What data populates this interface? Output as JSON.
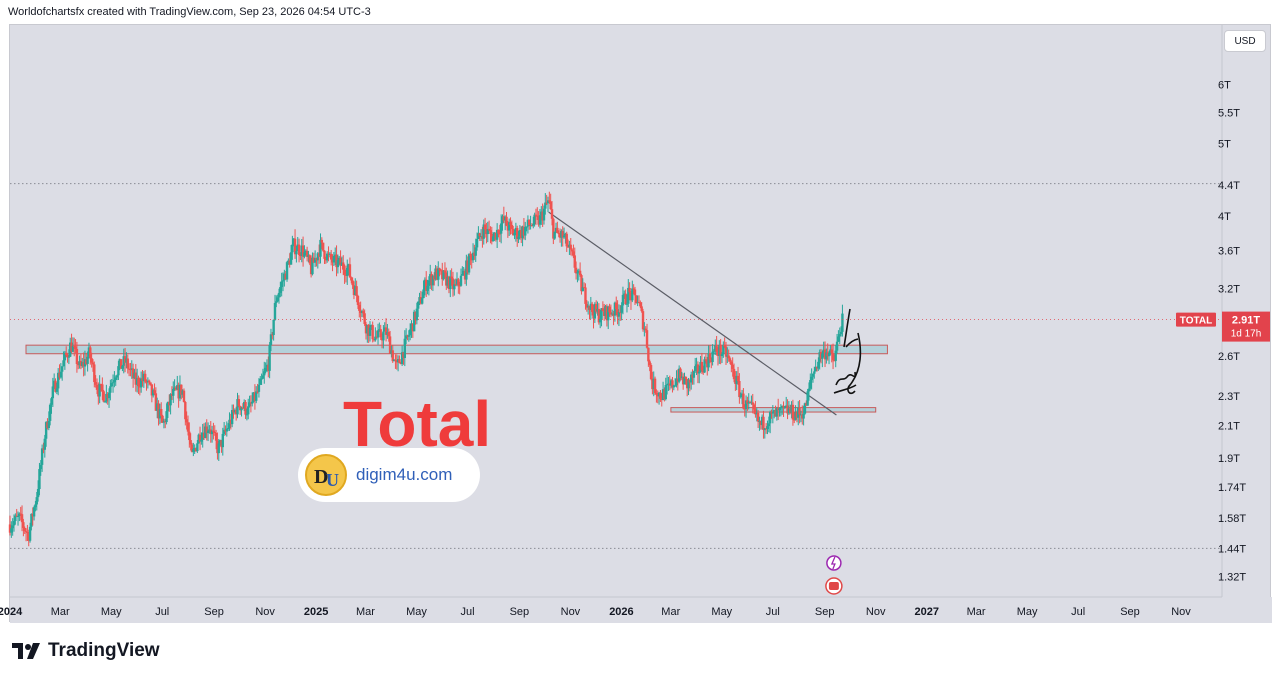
{
  "header": {
    "credit": "Worldofchartsfx created with TradingView.com, Sep 23, 2026 04:54 UTC-3"
  },
  "brand": {
    "name": "TradingView",
    "icon": "tradingview-logo-icon"
  },
  "toolbar": {
    "currency": "USD"
  },
  "overlay": {
    "title": "Total"
  },
  "watermark": {
    "text": "digim4u.com",
    "logo_text": "DU"
  },
  "colors": {
    "up": "#26a69a",
    "down": "#ef5350",
    "background": "#dcdde5",
    "label": "#e2434c",
    "zone_fill": "#a7ccd6"
  },
  "chart_data": {
    "type": "candlestick",
    "symbol": "TOTAL",
    "interval": "1D",
    "scale": "log",
    "current_value": 2.91,
    "current_label": "2.91T",
    "countdown_label": "1d 17h",
    "price_label": "TOTAL",
    "currency": "USD",
    "y_unit": "T",
    "xlim": [
      "2024-01-01",
      "2027-12-20"
    ],
    "ylim": [
      1.24,
      7.2
    ],
    "y_ticks": [
      {
        "value": 6,
        "label": "6T"
      },
      {
        "value": 5.5,
        "label": "5.5T"
      },
      {
        "value": 5,
        "label": "5T"
      },
      {
        "value": 4.4,
        "label": "4.4T"
      },
      {
        "value": 4,
        "label": "4T"
      },
      {
        "value": 3.6,
        "label": "3.6T"
      },
      {
        "value": 3.2,
        "label": "3.2T"
      },
      {
        "value": 2.6,
        "label": "2.6T"
      },
      {
        "value": 2.3,
        "label": "2.3T"
      },
      {
        "value": 2.1,
        "label": "2.1T"
      },
      {
        "value": 1.9,
        "label": "1.9T"
      },
      {
        "value": 1.74,
        "label": "1.74T"
      },
      {
        "value": 1.58,
        "label": "1.58T"
      },
      {
        "value": 1.44,
        "label": "1.44T"
      },
      {
        "value": 1.32,
        "label": "1.32T"
      }
    ],
    "x_ticks": [
      {
        "date": "2024-01-01",
        "label": "2024",
        "bold": true
      },
      {
        "date": "2024-03-01",
        "label": "Mar"
      },
      {
        "date": "2024-05-01",
        "label": "May"
      },
      {
        "date": "2024-07-01",
        "label": "Jul"
      },
      {
        "date": "2024-09-01",
        "label": "Sep"
      },
      {
        "date": "2024-11-01",
        "label": "Nov"
      },
      {
        "date": "2025-01-01",
        "label": "2025",
        "bold": true
      },
      {
        "date": "2025-03-01",
        "label": "Mar"
      },
      {
        "date": "2025-05-01",
        "label": "May"
      },
      {
        "date": "2025-07-01",
        "label": "Jul"
      },
      {
        "date": "2025-09-01",
        "label": "Sep"
      },
      {
        "date": "2025-11-01",
        "label": "Nov"
      },
      {
        "date": "2026-01-01",
        "label": "2026",
        "bold": true
      },
      {
        "date": "2026-03-01",
        "label": "Mar"
      },
      {
        "date": "2026-05-01",
        "label": "May"
      },
      {
        "date": "2026-07-01",
        "label": "Jul"
      },
      {
        "date": "2026-09-01",
        "label": "Sep"
      },
      {
        "date": "2026-11-01",
        "label": "Nov"
      },
      {
        "date": "2027-01-01",
        "label": "2027",
        "bold": true
      },
      {
        "date": "2027-03-01",
        "label": "Mar"
      },
      {
        "date": "2027-05-01",
        "label": "May"
      },
      {
        "date": "2027-07-01",
        "label": "Jul"
      },
      {
        "date": "2027-09-01",
        "label": "Sep"
      },
      {
        "date": "2027-11-01",
        "label": "Nov"
      }
    ],
    "series": [
      {
        "name": "TOTAL",
        "points": [
          [
            "2024-01-01",
            1.55
          ],
          [
            "2024-01-12",
            1.58
          ],
          [
            "2024-01-23",
            1.5
          ],
          [
            "2024-02-02",
            1.7
          ],
          [
            "2024-02-12",
            2.05
          ],
          [
            "2024-02-22",
            2.35
          ],
          [
            "2024-03-05",
            2.55
          ],
          [
            "2024-03-14",
            2.7
          ],
          [
            "2024-03-25",
            2.5
          ],
          [
            "2024-04-05",
            2.62
          ],
          [
            "2024-04-15",
            2.35
          ],
          [
            "2024-04-25",
            2.3
          ],
          [
            "2024-05-06",
            2.48
          ],
          [
            "2024-05-18",
            2.56
          ],
          [
            "2024-05-30",
            2.4
          ],
          [
            "2024-06-10",
            2.42
          ],
          [
            "2024-06-20",
            2.3
          ],
          [
            "2024-07-02",
            2.1
          ],
          [
            "2024-07-12",
            2.3
          ],
          [
            "2024-07-25",
            2.35
          ],
          [
            "2024-08-05",
            1.9
          ],
          [
            "2024-08-15",
            2.05
          ],
          [
            "2024-08-26",
            2.1
          ],
          [
            "2024-09-06",
            1.95
          ],
          [
            "2024-09-18",
            2.1
          ],
          [
            "2024-09-30",
            2.25
          ],
          [
            "2024-10-12",
            2.2
          ],
          [
            "2024-10-25",
            2.35
          ],
          [
            "2024-11-05",
            2.55
          ],
          [
            "2024-11-14",
            3.1
          ],
          [
            "2024-11-25",
            3.35
          ],
          [
            "2024-12-05",
            3.65
          ],
          [
            "2024-12-16",
            3.6
          ],
          [
            "2024-12-26",
            3.4
          ],
          [
            "2025-01-06",
            3.65
          ],
          [
            "2025-01-17",
            3.5
          ],
          [
            "2025-01-29",
            3.45
          ],
          [
            "2025-02-08",
            3.4
          ],
          [
            "2025-02-20",
            3.1
          ],
          [
            "2025-03-02",
            2.85
          ],
          [
            "2025-03-14",
            2.75
          ],
          [
            "2025-03-26",
            2.8
          ],
          [
            "2025-04-07",
            2.5
          ],
          [
            "2025-04-18",
            2.7
          ],
          [
            "2025-04-30",
            2.95
          ],
          [
            "2025-05-12",
            3.25
          ],
          [
            "2025-05-24",
            3.35
          ],
          [
            "2025-06-05",
            3.3
          ],
          [
            "2025-06-16",
            3.2
          ],
          [
            "2025-06-27",
            3.35
          ],
          [
            "2025-07-08",
            3.6
          ],
          [
            "2025-07-20",
            3.85
          ],
          [
            "2025-08-01",
            3.75
          ],
          [
            "2025-08-13",
            3.95
          ],
          [
            "2025-08-24",
            3.8
          ],
          [
            "2025-09-02",
            3.8
          ],
          [
            "2025-09-14",
            3.9
          ],
          [
            "2025-09-25",
            3.95
          ],
          [
            "2025-10-06",
            4.2
          ],
          [
            "2025-10-12",
            3.8
          ],
          [
            "2025-10-24",
            3.75
          ],
          [
            "2025-11-04",
            3.5
          ],
          [
            "2025-11-15",
            3.2
          ],
          [
            "2025-11-26",
            3.0
          ],
          [
            "2025-12-06",
            2.95
          ],
          [
            "2025-12-16",
            2.98
          ],
          [
            "2025-12-28",
            3.0
          ],
          [
            "2026-01-09",
            3.15
          ],
          [
            "2026-01-20",
            3.1
          ],
          [
            "2026-01-30",
            2.8
          ],
          [
            "2026-02-06",
            2.4
          ],
          [
            "2026-02-17",
            2.3
          ],
          [
            "2026-02-28",
            2.36
          ],
          [
            "2026-03-10",
            2.45
          ],
          [
            "2026-03-21",
            2.38
          ],
          [
            "2026-04-01",
            2.48
          ],
          [
            "2026-04-12",
            2.56
          ],
          [
            "2026-04-24",
            2.65
          ],
          [
            "2026-05-06",
            2.62
          ],
          [
            "2026-05-16",
            2.45
          ],
          [
            "2026-05-27",
            2.25
          ],
          [
            "2026-06-06",
            2.2
          ],
          [
            "2026-06-16",
            2.1
          ],
          [
            "2026-06-27",
            2.15
          ],
          [
            "2026-07-08",
            2.18
          ],
          [
            "2026-07-19",
            2.2
          ],
          [
            "2026-07-30",
            2.17
          ],
          [
            "2026-08-08",
            2.2
          ],
          [
            "2026-08-17",
            2.45
          ],
          [
            "2026-08-26",
            2.6
          ],
          [
            "2026-09-04",
            2.65
          ],
          [
            "2026-09-12",
            2.55
          ],
          [
            "2026-09-20",
            2.85
          ],
          [
            "2026-09-23",
            2.91
          ]
        ]
      }
    ],
    "annotations": {
      "dotted_levels": [
        4.42,
        1.44
      ],
      "zones": [
        {
          "from": "2024-01-01",
          "to": "2026-11-15",
          "low": 2.62,
          "high": 2.69
        },
        {
          "from": "2026-02-10",
          "to": "2026-11-01",
          "low": 2.19,
          "high": 2.22
        }
      ],
      "trendline": {
        "from": [
          "2025-10-06",
          4.05
        ],
        "to": [
          "2026-09-15",
          2.17
        ]
      }
    }
  }
}
